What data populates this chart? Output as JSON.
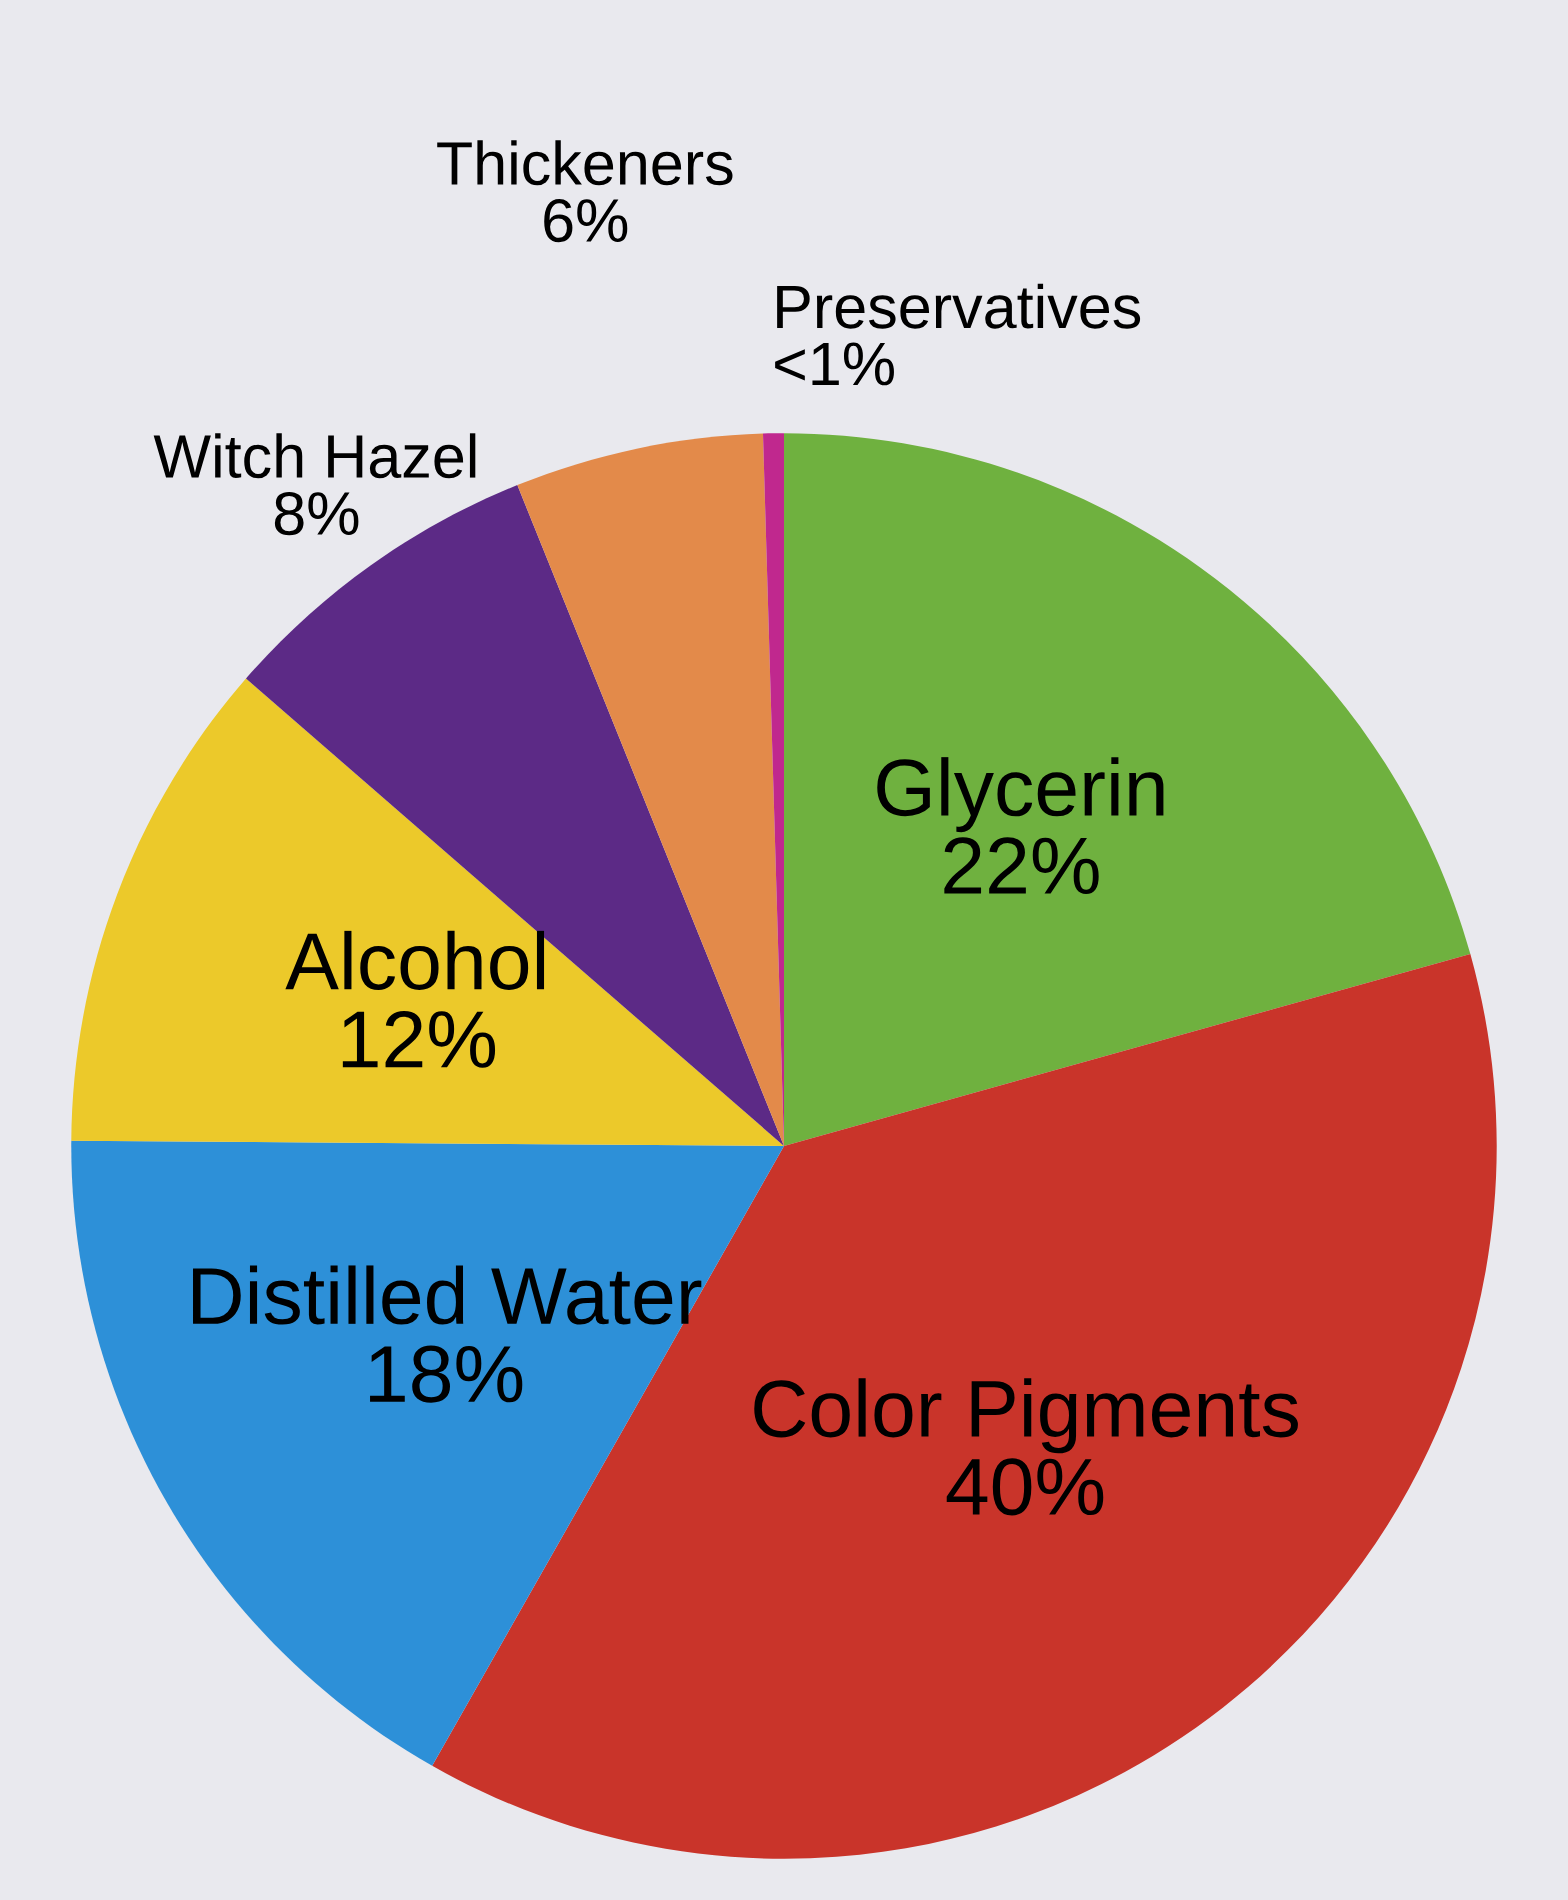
{
  "chart_data": {
    "type": "pie",
    "categories": [
      "Glycerin",
      "Color Pigments",
      "Distilled Water",
      "Alcohol",
      "Witch Hazel",
      "Thickeners",
      "Preservatives"
    ],
    "values": [
      22,
      40,
      18,
      12,
      8,
      6,
      0.5
    ],
    "value_labels": [
      "22%",
      "40%",
      "18%",
      "12%",
      "8%",
      "6%",
      "<1%"
    ],
    "colors": [
      "#6fb13f",
      "#c9342a",
      "#2d90d8",
      "#ecc92a",
      "#5c2a86",
      "#e38a4a",
      "#c0288e"
    ],
    "legend": false
  }
}
